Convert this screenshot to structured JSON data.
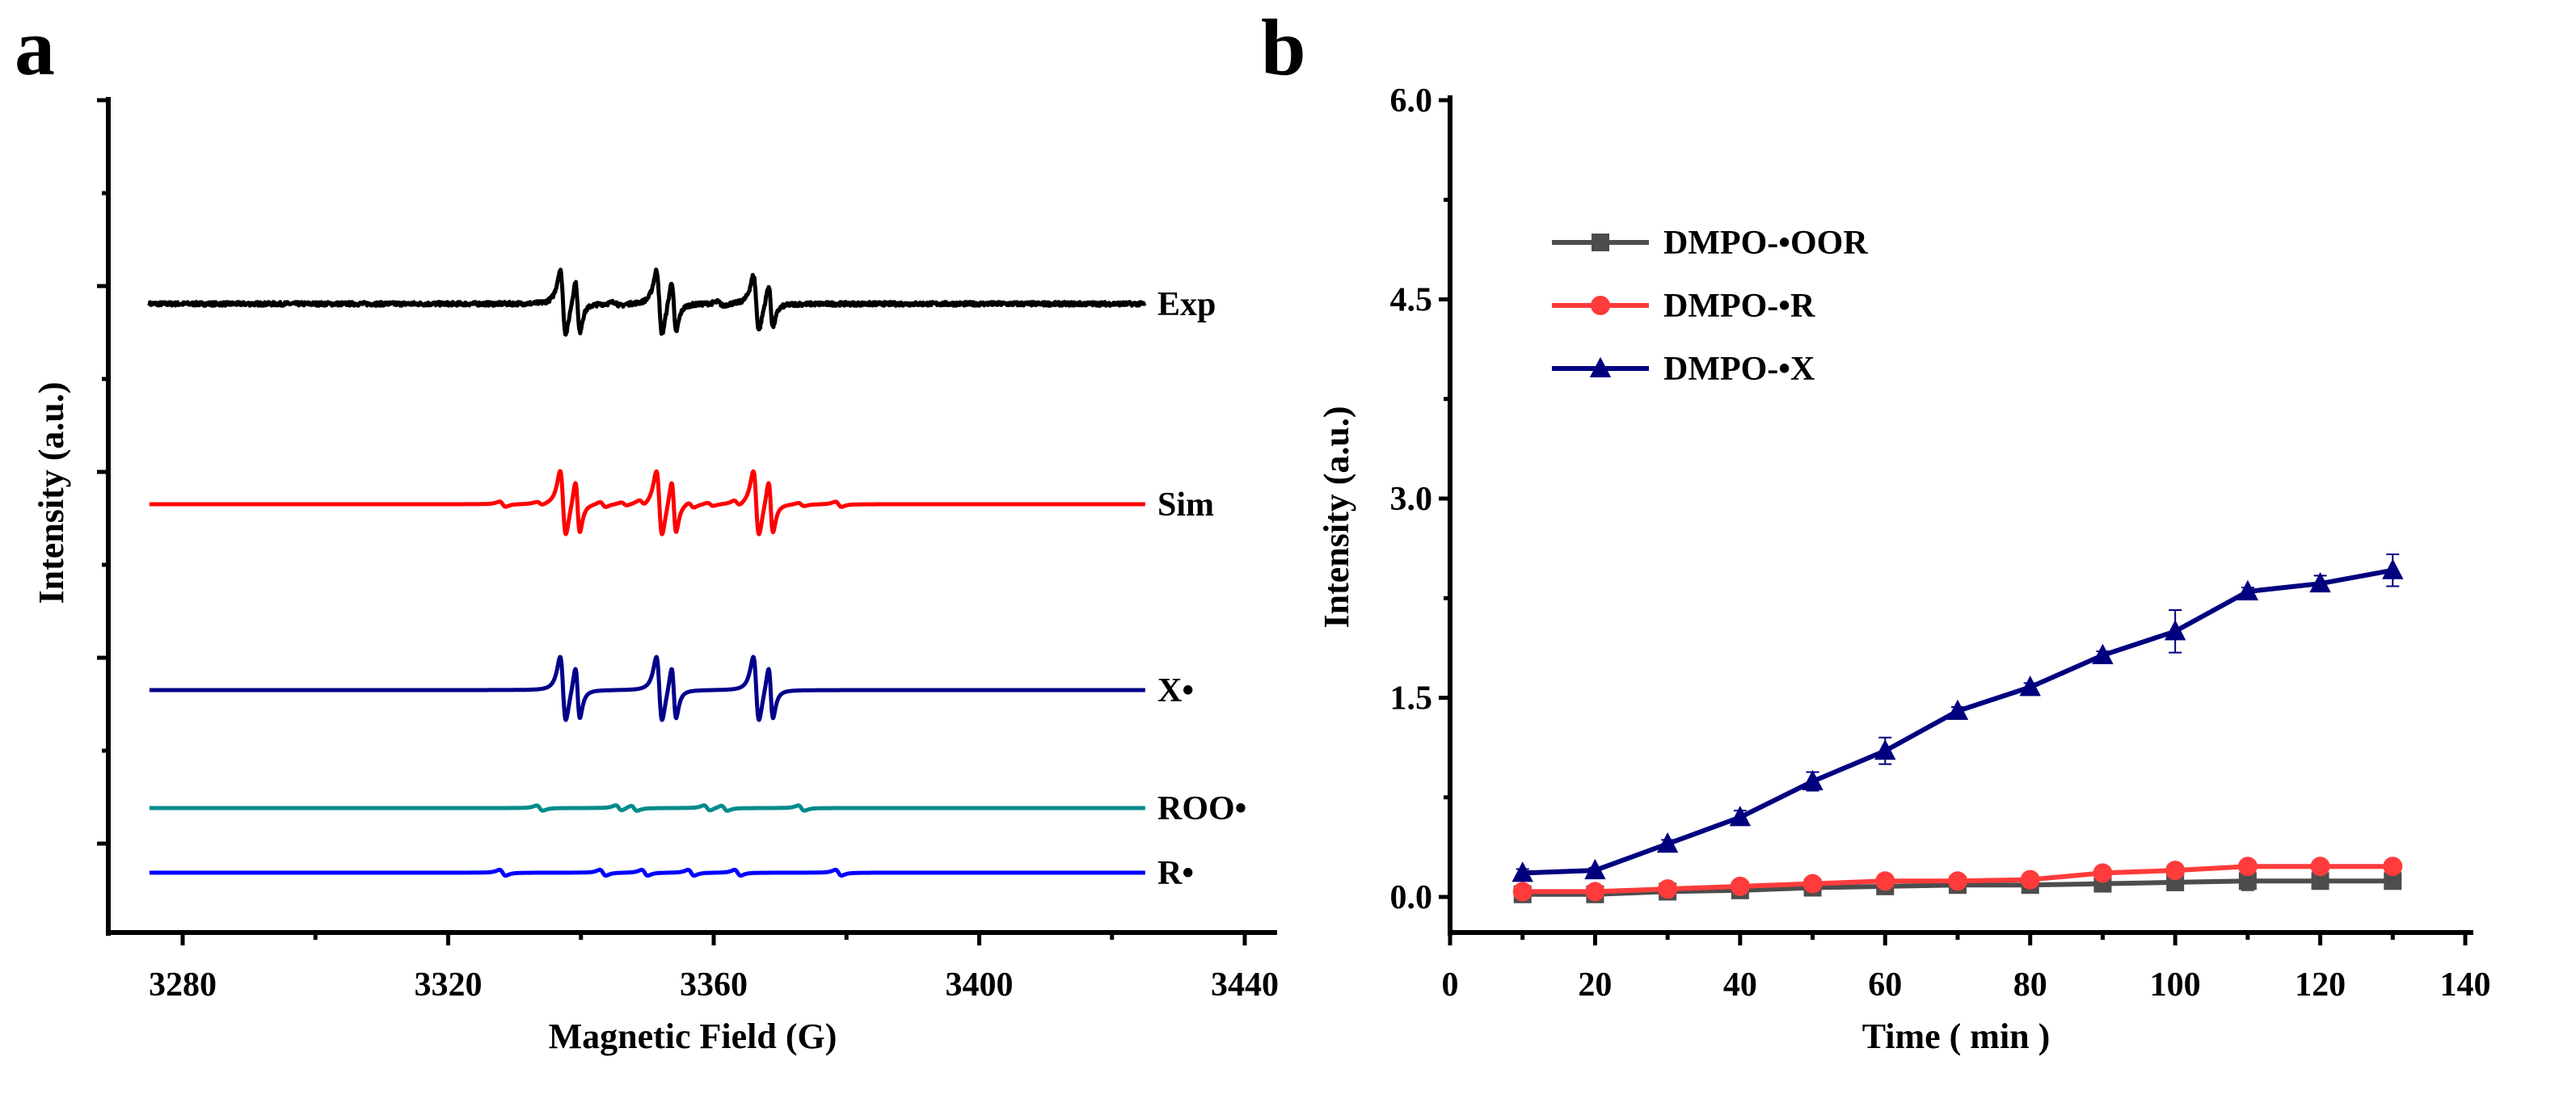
{
  "chart_data": [
    {
      "panel": "a",
      "type": "line",
      "title": "",
      "xlabel": "Magnetic Field (G)",
      "ylabel": "Intensity (a.u.)",
      "xlim": [
        3270,
        3440
      ],
      "xticks": [
        3280,
        3320,
        3360,
        3400,
        3440
      ],
      "x_range_plotted": [
        3275,
        3425
      ],
      "series": [
        {
          "name": "Exp",
          "label": "Exp",
          "color": "#000000",
          "noise": true,
          "lines": [
            {
              "center": 3337.3,
              "amp": 1.0,
              "width": 0.75
            },
            {
              "center": 3339.5,
              "amp": 0.8,
              "width": 0.6
            },
            {
              "center": 3351.8,
              "amp": 1.0,
              "width": 0.75
            },
            {
              "center": 3354.0,
              "amp": 0.8,
              "width": 0.6
            },
            {
              "center": 3366.4,
              "amp": 0.85,
              "width": 0.75
            },
            {
              "center": 3368.6,
              "amp": 0.65,
              "width": 0.6
            },
            {
              "center": 3345.5,
              "amp": 0.06,
              "width": 0.8
            },
            {
              "center": 3361.0,
              "amp": 0.06,
              "width": 0.8
            }
          ]
        },
        {
          "name": "Sim",
          "label": "Sim",
          "color": "#ff0000",
          "noise": false,
          "lines": [
            {
              "center": 3337.3,
              "amp": 1.0,
              "width": 0.75
            },
            {
              "center": 3339.5,
              "amp": 0.8,
              "width": 0.6
            },
            {
              "center": 3351.8,
              "amp": 1.0,
              "width": 0.75
            },
            {
              "center": 3354.0,
              "amp": 0.8,
              "width": 0.6
            },
            {
              "center": 3366.4,
              "amp": 1.0,
              "width": 0.75
            },
            {
              "center": 3368.6,
              "amp": 0.8,
              "width": 0.6
            },
            {
              "center": 3328.2,
              "amp": 0.08,
              "width": 0.8
            },
            {
              "center": 3343.3,
              "amp": 0.08,
              "width": 0.8
            },
            {
              "center": 3349.2,
              "amp": 0.08,
              "width": 0.8
            },
            {
              "center": 3356.6,
              "amp": 0.08,
              "width": 0.8
            },
            {
              "center": 3363.5,
              "amp": 0.08,
              "width": 0.8
            },
            {
              "center": 3378.8,
              "amp": 0.08,
              "width": 0.8
            },
            {
              "center": 3333.8,
              "amp": 0.05,
              "width": 0.8
            },
            {
              "center": 3346.5,
              "amp": 0.05,
              "width": 0.8
            },
            {
              "center": 3359.5,
              "amp": 0.05,
              "width": 0.8
            },
            {
              "center": 3373.2,
              "amp": 0.05,
              "width": 0.8
            }
          ]
        },
        {
          "name": "X•",
          "label": "X•",
          "color": "#00008b",
          "noise": false,
          "lines": [
            {
              "center": 3337.3,
              "amp": 1.0,
              "width": 0.75
            },
            {
              "center": 3339.5,
              "amp": 0.8,
              "width": 0.6
            },
            {
              "center": 3351.8,
              "amp": 1.0,
              "width": 0.75
            },
            {
              "center": 3354.0,
              "amp": 0.8,
              "width": 0.6
            },
            {
              "center": 3366.4,
              "amp": 1.0,
              "width": 0.75
            },
            {
              "center": 3368.6,
              "amp": 0.8,
              "width": 0.6
            }
          ]
        },
        {
          "name": "ROO•",
          "label": "ROO•",
          "color": "#008b8b",
          "noise": false,
          "lines": [
            {
              "center": 3333.8,
              "amp": 0.08,
              "width": 0.8
            },
            {
              "center": 3345.7,
              "amp": 0.08,
              "width": 0.8
            },
            {
              "center": 3348.0,
              "amp": 0.08,
              "width": 0.8
            },
            {
              "center": 3359.0,
              "amp": 0.08,
              "width": 0.8
            },
            {
              "center": 3361.6,
              "amp": 0.08,
              "width": 0.8
            },
            {
              "center": 3373.2,
              "amp": 0.08,
              "width": 0.8
            }
          ]
        },
        {
          "name": "R•",
          "label": "R•",
          "color": "#0000ff",
          "noise": false,
          "lines": [
            {
              "center": 3328.2,
              "amp": 0.09,
              "width": 0.8
            },
            {
              "center": 3343.3,
              "amp": 0.09,
              "width": 0.8
            },
            {
              "center": 3349.6,
              "amp": 0.09,
              "width": 0.8
            },
            {
              "center": 3356.6,
              "amp": 0.09,
              "width": 0.8
            },
            {
              "center": 3363.6,
              "amp": 0.09,
              "width": 0.8
            },
            {
              "center": 3378.8,
              "amp": 0.09,
              "width": 0.8
            }
          ]
        }
      ]
    },
    {
      "panel": "b",
      "type": "line",
      "title": "",
      "xlabel": "Time ( min )",
      "ylabel": "Intensity (a.u.)",
      "xlim": [
        0,
        140
      ],
      "ylim": [
        -0.2,
        6.0
      ],
      "xticks": [
        0,
        20,
        40,
        60,
        80,
        100,
        120,
        140
      ],
      "yticks": [
        "0.0",
        "1.5",
        "3.0",
        "4.5",
        "6.0"
      ],
      "legend_position": "upper-left",
      "x": [
        10,
        20,
        30,
        40,
        50,
        60,
        70,
        80,
        90,
        100,
        110,
        120,
        130
      ],
      "series": [
        {
          "name": "DMPO-•OOR",
          "color": "#4d4d4d",
          "marker": "square",
          "values": [
            0.02,
            0.02,
            0.04,
            0.05,
            0.07,
            0.08,
            0.09,
            0.09,
            0.1,
            0.11,
            0.12,
            0.12,
            0.12
          ],
          "errors": [
            0.01,
            0.01,
            0.01,
            0.01,
            0.01,
            0.01,
            0.01,
            0.01,
            0.01,
            0.02,
            0.07,
            0.05,
            0.02
          ]
        },
        {
          "name": "DMPO-•R",
          "color": "#ff3b3b",
          "marker": "circle",
          "values": [
            0.04,
            0.04,
            0.06,
            0.08,
            0.1,
            0.12,
            0.12,
            0.13,
            0.18,
            0.2,
            0.23,
            0.23,
            0.23
          ],
          "errors": [
            0.01,
            0.01,
            0.01,
            0.01,
            0.01,
            0.01,
            0.01,
            0.01,
            0.02,
            0.02,
            0.02,
            0.02,
            0.02
          ]
        },
        {
          "name": "DMPO-•X",
          "color": "#00007f",
          "marker": "triangle",
          "values": [
            0.18,
            0.2,
            0.4,
            0.6,
            0.87,
            1.1,
            1.4,
            1.58,
            1.82,
            2.0,
            2.3,
            2.36,
            2.46
          ],
          "errors": [
            0.03,
            0.02,
            0.03,
            0.05,
            0.07,
            0.1,
            0.03,
            0.03,
            0.03,
            0.16,
            0.03,
            0.06,
            0.12
          ]
        }
      ]
    }
  ],
  "panel_labels": [
    "a",
    "b"
  ]
}
